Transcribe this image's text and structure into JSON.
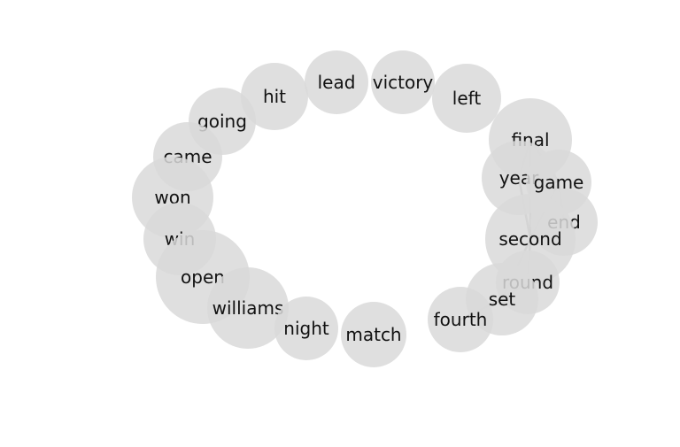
{
  "diagram": {
    "type": "word-network",
    "node_color": "#d9d9d9",
    "edge_color": "#999999",
    "nodes": [
      {
        "id": "lead",
        "label": "lead"
      },
      {
        "id": "victory",
        "label": "victory"
      },
      {
        "id": "hit",
        "label": "hit"
      },
      {
        "id": "left",
        "label": "left"
      },
      {
        "id": "going",
        "label": "going"
      },
      {
        "id": "came",
        "label": "came"
      },
      {
        "id": "final",
        "label": "final"
      },
      {
        "id": "won",
        "label": "won"
      },
      {
        "id": "year",
        "label": "year"
      },
      {
        "id": "game",
        "label": "game"
      },
      {
        "id": "end",
        "label": "end"
      },
      {
        "id": "win",
        "label": "win"
      },
      {
        "id": "second",
        "label": "second"
      },
      {
        "id": "open",
        "label": "open"
      },
      {
        "id": "round",
        "label": "round"
      },
      {
        "id": "set",
        "label": "set"
      },
      {
        "id": "williams",
        "label": "williams"
      },
      {
        "id": "night",
        "label": "night"
      },
      {
        "id": "fourth",
        "label": "fourth"
      },
      {
        "id": "match",
        "label": "match"
      }
    ],
    "edges": [
      [
        "final",
        "year"
      ],
      [
        "final",
        "game"
      ],
      [
        "final",
        "second"
      ],
      [
        "year",
        "game"
      ],
      [
        "year",
        "second"
      ],
      [
        "game",
        "end"
      ],
      [
        "game",
        "second"
      ],
      [
        "second",
        "round"
      ],
      [
        "second",
        "set"
      ],
      [
        "round",
        "set"
      ],
      [
        "set",
        "fourth"
      ]
    ]
  }
}
